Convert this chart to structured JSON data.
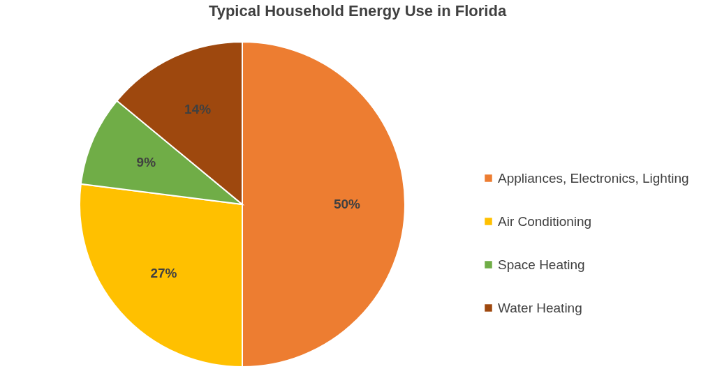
{
  "chart_data": {
    "type": "pie",
    "title": "Typical Household Energy Use in Florida",
    "categories": [
      "Appliances, Electronics, Lighting",
      "Air Conditioning",
      "Space Heating",
      "Water Heating"
    ],
    "values": [
      50,
      27,
      9,
      14
    ],
    "value_labels": [
      "50%",
      "27%",
      "9%",
      "14%"
    ],
    "colors": [
      "#ed7d31",
      "#ffc000",
      "#70ad47",
      "#9e480e"
    ],
    "legend": "right"
  }
}
